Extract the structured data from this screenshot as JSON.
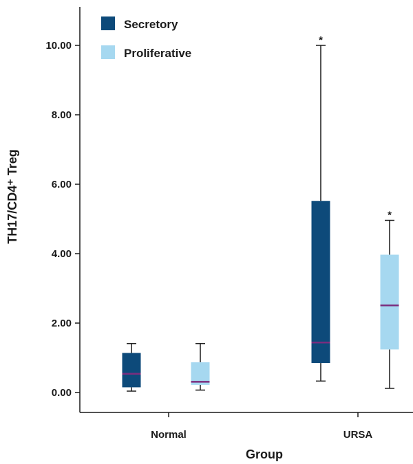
{
  "chart_data": {
    "type": "box",
    "xlabel": "Group",
    "ylabel": "TH17/CD4⁺ Treg",
    "ylim": [
      0,
      11.2
    ],
    "yticks": [
      "0.00",
      "2.00",
      "4.00",
      "6.00",
      "8.00",
      "10.00"
    ],
    "categories": [
      "Normal",
      "URSA"
    ],
    "legend_position": "top-left",
    "series": [
      {
        "name": "Secretory",
        "color": "#0d4a7a",
        "boxes": [
          {
            "category": "Normal",
            "min": 0.04,
            "q1": 0.15,
            "median": 0.54,
            "q3": 1.14,
            "max": 1.41,
            "annotation": ""
          },
          {
            "category": "URSA",
            "min": 0.33,
            "q1": 0.85,
            "median": 1.44,
            "q3": 5.52,
            "max": 10.0,
            "annotation": "*"
          }
        ]
      },
      {
        "name": "Proliferative",
        "color": "#a6d8f0",
        "boxes": [
          {
            "category": "Normal",
            "min": 0.07,
            "q1": 0.22,
            "median": 0.31,
            "q3": 0.87,
            "max": 1.41,
            "annotation": ""
          },
          {
            "category": "URSA",
            "min": 0.12,
            "q1": 1.24,
            "median": 2.51,
            "q3": 3.97,
            "max": 4.96,
            "annotation": "*"
          }
        ]
      }
    ],
    "median_color": "#7b2d7e"
  }
}
